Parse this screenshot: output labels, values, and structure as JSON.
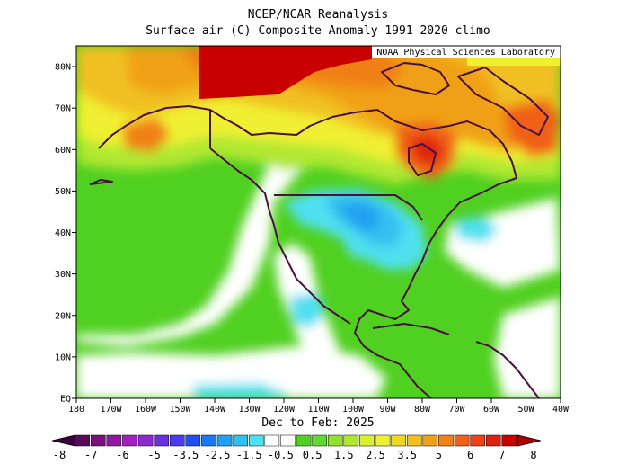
{
  "header": {
    "title": "NCEP/NCAR Reanalysis",
    "subtitle": "Surface air (C) Composite Anomaly 1991-2020 climo"
  },
  "credit": "NOAA Physical Sciences Laboratory",
  "map": {
    "xlabel": "Dec to Feb: 2025",
    "lon_range": [
      -180,
      -40
    ],
    "lat_range": [
      0,
      85
    ],
    "lon_ticks": [
      "180",
      "170W",
      "160W",
      "150W",
      "140W",
      "130W",
      "120W",
      "110W",
      "100W",
      "90W",
      "80W",
      "70W",
      "60W",
      "50W",
      "40W"
    ],
    "lat_ticks": [
      "EQ",
      "10N",
      "20N",
      "30N",
      "40N",
      "50N",
      "60N",
      "70N",
      "80N"
    ]
  },
  "colorbar": {
    "labels": [
      "-8",
      "-7",
      "-6",
      "-5",
      "-3.5",
      "-2.5",
      "-1.5",
      "-0.5",
      "0.5",
      "1.5",
      "2.5",
      "3.5",
      "5",
      "6",
      "7",
      "8"
    ],
    "colors": [
      "#3b003b",
      "#5a0a5a",
      "#7a127a",
      "#8f1a9f",
      "#a020c0",
      "#8a2ad0",
      "#6a30e0",
      "#4a3cf0",
      "#2050f0",
      "#1a78f0",
      "#20a0f0",
      "#30c0f0",
      "#50e0f0",
      "#ffffff",
      "#ffffff",
      "#50d020",
      "#60d830",
      "#90e030",
      "#b0e830",
      "#d8f030",
      "#f0f030",
      "#f0d820",
      "#f0c020",
      "#f0a018",
      "#f08018",
      "#f06018",
      "#f04018",
      "#e02010",
      "#c80000",
      "#b00000"
    ]
  }
}
